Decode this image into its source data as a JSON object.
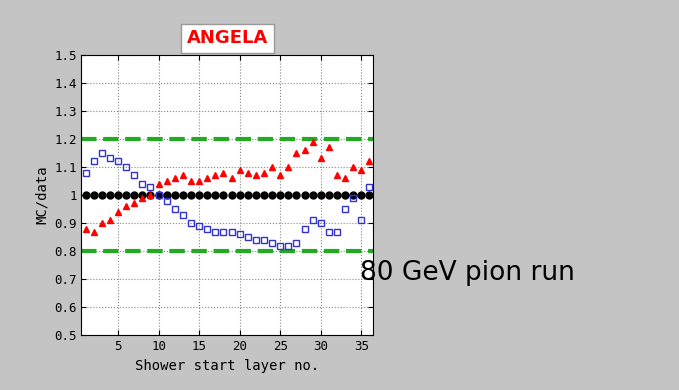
{
  "chart_data": {
    "type": "scatter",
    "title": "ANGELA",
    "x_label": "Shower start layer no.",
    "y_label": "MC/data",
    "x": [
      1,
      2,
      3,
      4,
      5,
      6,
      7,
      8,
      9,
      10,
      11,
      12,
      13,
      14,
      15,
      16,
      17,
      18,
      19,
      20,
      21,
      22,
      23,
      24,
      25,
      26,
      27,
      28,
      29,
      30,
      31,
      32,
      33,
      34,
      35,
      36
    ],
    "series": [
      {
        "color": "#000000",
        "marker": "circle",
        "line_style": "none",
        "values": [
          1,
          1,
          1,
          1,
          1,
          1,
          1,
          1,
          1,
          1,
          1,
          1,
          1,
          1,
          1,
          1,
          1,
          1,
          1,
          1,
          1,
          1,
          1,
          1,
          1,
          1,
          1,
          1,
          1,
          1,
          1,
          1,
          1,
          1,
          1,
          1
        ]
      },
      {
        "color": "#ff0000",
        "marker": "triangle",
        "line_style": "none",
        "values": [
          0.88,
          0.87,
          0.9,
          0.91,
          0.94,
          0.96,
          0.97,
          0.99,
          1.0,
          1.04,
          1.05,
          1.06,
          1.07,
          1.05,
          1.05,
          1.06,
          1.07,
          1.08,
          1.06,
          1.09,
          1.08,
          1.07,
          1.08,
          1.1,
          1.07,
          1.1,
          1.15,
          1.16,
          1.19,
          1.13,
          1.17,
          1.07,
          1.06,
          1.1,
          1.09,
          1.12
        ]
      },
      {
        "color": "#3333cc",
        "marker": "open_square",
        "line_style": "none",
        "values": [
          1.08,
          1.12,
          1.15,
          1.13,
          1.12,
          1.1,
          1.07,
          1.04,
          1.03,
          1.0,
          0.98,
          0.95,
          0.93,
          0.9,
          0.89,
          0.88,
          0.87,
          0.87,
          0.87,
          0.86,
          0.85,
          0.84,
          0.84,
          0.83,
          0.82,
          0.82,
          0.83,
          0.88,
          0.91,
          0.9,
          0.87,
          0.87,
          0.95,
          0.99,
          0.91,
          1.03
        ]
      }
    ],
    "reference_lines": {
      "values": [
        0.8,
        1.2
      ],
      "color": "#22aa22",
      "line_style": "dashed"
    },
    "annotations": [
      "80 GeV pion run"
    ],
    "xlim": [
      0.5,
      36.5
    ],
    "xticks": [
      5,
      10,
      15,
      20,
      25,
      30,
      35
    ],
    "ylim": [
      0.5,
      1.5
    ],
    "yticks": [
      0.5,
      0.6,
      0.7,
      0.8,
      0.9,
      1,
      1.1,
      1.2,
      1.3,
      1.4,
      1.5
    ],
    "grid": true
  }
}
